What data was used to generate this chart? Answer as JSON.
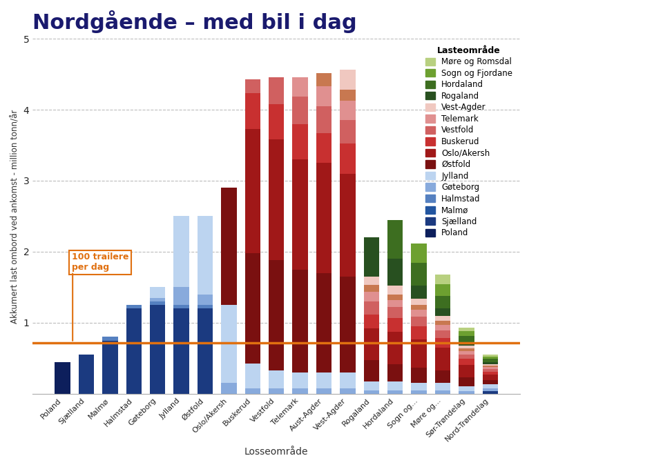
{
  "title": "Nordgående – med bil i dag",
  "xlabel": "Losseområde",
  "ylabel": "Akkumert last ombord ved ankomst - million tonn/år",
  "ylim": [
    0,
    5
  ],
  "yticks": [
    1,
    2,
    3,
    4,
    5
  ],
  "hline_y": 0.72,
  "hline_label": "100 trailere\nper dag",
  "categories": [
    "Poland",
    "Sjælland",
    "Malmø",
    "Halmstad",
    "Gøteborg",
    "Jylland",
    "Østfold",
    "Oslo/Akersh",
    "Buskerud",
    "Vestfold",
    "Telemark",
    "Aust-Agder",
    "Vest-Agder",
    "Rogaland",
    "Hordaland",
    "Sogn og...",
    "Møre og...",
    "Sør-Trøndelag",
    "Nord-Trøndelag"
  ],
  "layer_names_bottom_to_top": [
    "Poland",
    "Sjælland",
    "Malmø",
    "Halmstad",
    "Gøteborg",
    "Jylland",
    "Østfold",
    "Oslo/Akersh",
    "Buskerud",
    "Vestfold",
    "Telemark",
    "Aust-Agder",
    "Vest-Agder",
    "Rogaland",
    "Hordaland",
    "Sogn og Fjordane",
    "Møre og Romsdal"
  ],
  "layer_colors": {
    "Poland": "#0d1f5c",
    "Sjælland": "#1b3a80",
    "Malmø": "#2255a0",
    "Halmstad": "#5580c0",
    "Gøteborg": "#88aadc",
    "Jylland": "#bcd4f0",
    "Buskerud": "#c83030",
    "Østfold": "#7a1010",
    "Oslo/Akersh": "#a01818",
    "Vestfold": "#d06060",
    "Telemark": "#e09090",
    "Aust-Agder": "#c87850",
    "Vest-Agder": "#f0c8c0",
    "Rogaland": "#285020",
    "Hordaland": "#3d6e20",
    "Sogn og Fjordane": "#6da030",
    "Møre og Romsdal": "#b8d080"
  },
  "layer_values": {
    "Poland": [
      0.45,
      0.0,
      0.0,
      0.0,
      0.0,
      0.0,
      0.0,
      0.0,
      0.0,
      0.0,
      0.0,
      0.0,
      0.0,
      0.0,
      0.0,
      0.0,
      0.0,
      0.0,
      0.0
    ],
    "Sjælland": [
      0.0,
      0.55,
      0.75,
      1.2,
      1.25,
      1.2,
      1.2,
      0.0,
      0.0,
      0.0,
      0.0,
      0.0,
      0.0,
      0.0,
      0.0,
      0.0,
      0.0,
      0.0,
      0.04
    ],
    "Malmø": [
      0.0,
      0.0,
      0.0,
      0.0,
      0.0,
      0.0,
      0.0,
      0.0,
      0.0,
      0.0,
      0.0,
      0.0,
      0.0,
      0.0,
      0.0,
      0.0,
      0.0,
      0.0,
      0.0
    ],
    "Halmstad": [
      0.0,
      0.0,
      0.05,
      0.05,
      0.05,
      0.05,
      0.05,
      0.0,
      0.0,
      0.0,
      0.0,
      0.0,
      0.0,
      0.0,
      0.0,
      0.0,
      0.0,
      0.0,
      0.0
    ],
    "Gøteborg": [
      0.0,
      0.0,
      0.0,
      0.0,
      0.05,
      0.25,
      0.15,
      0.15,
      0.08,
      0.08,
      0.08,
      0.08,
      0.08,
      0.05,
      0.05,
      0.05,
      0.05,
      0.04,
      0.04
    ],
    "Jylland": [
      0.0,
      0.0,
      0.0,
      0.0,
      0.15,
      1.0,
      1.1,
      1.1,
      0.35,
      0.25,
      0.22,
      0.22,
      0.22,
      0.12,
      0.12,
      0.1,
      0.1,
      0.07,
      0.05
    ],
    "Østfold": [
      0.0,
      0.0,
      0.0,
      0.0,
      0.0,
      0.0,
      0.0,
      1.65,
      1.55,
      1.55,
      1.45,
      1.4,
      1.35,
      0.3,
      0.25,
      0.22,
      0.18,
      0.12,
      0.06
    ],
    "Oslo/Akersh": [
      0.0,
      0.0,
      0.0,
      0.0,
      0.0,
      0.0,
      0.0,
      0.0,
      1.75,
      1.7,
      1.55,
      1.55,
      1.45,
      0.45,
      0.45,
      0.4,
      0.32,
      0.18,
      0.08
    ],
    "Buskerud": [
      0.0,
      0.0,
      0.0,
      0.0,
      0.0,
      0.0,
      0.0,
      0.0,
      0.5,
      0.5,
      0.5,
      0.42,
      0.42,
      0.2,
      0.2,
      0.18,
      0.14,
      0.08,
      0.04
    ],
    "Vestfold": [
      0.0,
      0.0,
      0.0,
      0.0,
      0.0,
      0.0,
      0.0,
      0.0,
      0.2,
      0.38,
      0.38,
      0.38,
      0.33,
      0.18,
      0.15,
      0.14,
      0.1,
      0.06,
      0.04
    ],
    "Telemark": [
      0.0,
      0.0,
      0.0,
      0.0,
      0.0,
      0.0,
      0.0,
      0.0,
      0.0,
      0.0,
      0.28,
      0.28,
      0.28,
      0.14,
      0.1,
      0.09,
      0.08,
      0.05,
      0.03
    ],
    "Aust-Agder": [
      0.0,
      0.0,
      0.0,
      0.0,
      0.0,
      0.0,
      0.0,
      0.0,
      0.0,
      0.0,
      0.0,
      0.18,
      0.15,
      0.09,
      0.08,
      0.07,
      0.06,
      0.04,
      0.02
    ],
    "Vest-Agder": [
      0.0,
      0.0,
      0.0,
      0.0,
      0.0,
      0.0,
      0.0,
      0.0,
      0.0,
      0.0,
      0.0,
      0.0,
      0.28,
      0.12,
      0.12,
      0.09,
      0.07,
      0.04,
      0.02
    ],
    "Rogaland": [
      0.0,
      0.0,
      0.0,
      0.0,
      0.0,
      0.0,
      0.0,
      0.0,
      0.0,
      0.0,
      0.0,
      0.0,
      0.0,
      0.55,
      0.38,
      0.18,
      0.1,
      0.05,
      0.03
    ],
    "Hordaland": [
      0.0,
      0.0,
      0.0,
      0.0,
      0.0,
      0.0,
      0.0,
      0.0,
      0.0,
      0.0,
      0.0,
      0.0,
      0.0,
      0.0,
      0.55,
      0.32,
      0.18,
      0.08,
      0.04
    ],
    "Sogn og Fjordane": [
      0.0,
      0.0,
      0.0,
      0.0,
      0.0,
      0.0,
      0.0,
      0.0,
      0.0,
      0.0,
      0.0,
      0.0,
      0.0,
      0.0,
      0.0,
      0.28,
      0.16,
      0.07,
      0.03
    ],
    "Møre og Romsdal": [
      0.0,
      0.0,
      0.0,
      0.0,
      0.0,
      0.0,
      0.0,
      0.0,
      0.0,
      0.0,
      0.0,
      0.0,
      0.0,
      0.0,
      0.0,
      0.0,
      0.14,
      0.05,
      0.03
    ]
  },
  "legend_order": [
    "Møre og Romsdal",
    "Sogn og Fjordane",
    "Hordaland",
    "Rogaland",
    "Vest-Agder",
    "Telemark",
    "Vestfold",
    "Buskerud",
    "Oslo/Akersh",
    "Østfold",
    "Jylland",
    "Gøteborg",
    "Halmstad",
    "Malmø",
    "Sjælland",
    "Poland"
  ],
  "title_color": "#1a1a6e",
  "background_color": "#ffffff",
  "grid_color": "#bbbbbb",
  "hline_color": "#e07010",
  "annotation_text_color": "#e07010"
}
